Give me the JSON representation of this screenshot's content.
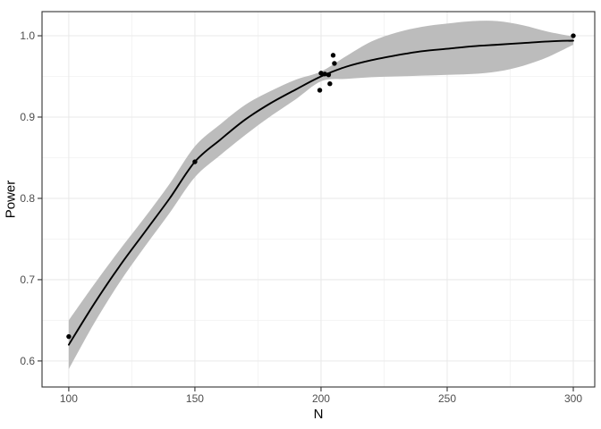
{
  "chart_data": {
    "type": "scatter",
    "title": "",
    "xlabel": "N",
    "ylabel": "Power",
    "grid": true,
    "legend": "none",
    "x_domain": [
      89.4,
      308.5
    ],
    "y_domain": [
      0.568,
      1.0297
    ],
    "x_ticks": [
      100,
      150,
      200,
      250,
      300
    ],
    "x_tick_labels": [
      "100",
      "150",
      "200",
      "250",
      "300"
    ],
    "x_minor_ticks": [
      125,
      175,
      225,
      275
    ],
    "y_ticks": [
      0.6,
      0.7,
      0.8,
      0.9,
      1.0
    ],
    "y_tick_labels": [
      "0.6",
      "0.7",
      "0.8",
      "0.9",
      "1.0"
    ],
    "y_minor_ticks": [
      0.65,
      0.75,
      0.85,
      0.95
    ],
    "points": [
      [
        100,
        0.63
      ],
      [
        150,
        0.845
      ],
      [
        199.5,
        0.933
      ],
      [
        200,
        0.954
      ],
      [
        201.5,
        0.953
      ],
      [
        203,
        0.952
      ],
      [
        203.5,
        0.941
      ],
      [
        204.8,
        0.976
      ],
      [
        205.3,
        0.966
      ],
      [
        300,
        1.0
      ]
    ],
    "smooth_line": {
      "x": [
        100,
        110,
        120,
        130,
        140,
        150,
        160,
        170,
        180,
        190,
        200,
        210,
        220,
        230,
        240,
        250,
        260,
        270,
        280,
        290,
        300
      ],
      "y": [
        0.62,
        0.67,
        0.716,
        0.758,
        0.8,
        0.845,
        0.872,
        0.897,
        0.917,
        0.934,
        0.95,
        0.962,
        0.97,
        0.976,
        0.981,
        0.984,
        0.987,
        0.989,
        0.991,
        0.993,
        0.994
      ]
    },
    "ribbon": {
      "x": [
        100,
        110,
        120,
        130,
        140,
        150,
        160,
        170,
        180,
        190,
        200,
        210,
        220,
        230,
        240,
        250,
        260,
        270,
        280,
        290,
        300
      ],
      "upper": [
        0.65,
        0.694,
        0.736,
        0.776,
        0.818,
        0.864,
        0.891,
        0.915,
        0.932,
        0.946,
        0.956,
        0.975,
        0.993,
        1.004,
        1.011,
        1.015,
        1.018,
        1.018,
        1.013,
        1.005,
        0.999
      ],
      "lower": [
        0.59,
        0.646,
        0.696,
        0.74,
        0.782,
        0.826,
        0.853,
        0.878,
        0.901,
        0.922,
        0.944,
        0.947,
        0.949,
        0.95,
        0.951,
        0.952,
        0.953,
        0.956,
        0.963,
        0.974,
        0.989
      ]
    },
    "colors": {
      "background": "#ffffff",
      "panel_bg": "#ffffff",
      "grid_major": "#e9e9e9",
      "grid_minor": "#f2f2f2",
      "ribbon": "#bcbcbc",
      "line": "#000000",
      "point": "#000000",
      "panel_border": "#333333",
      "tick": "#333333",
      "tick_label": "#4d4d4d",
      "axis_title": "#000000"
    }
  }
}
